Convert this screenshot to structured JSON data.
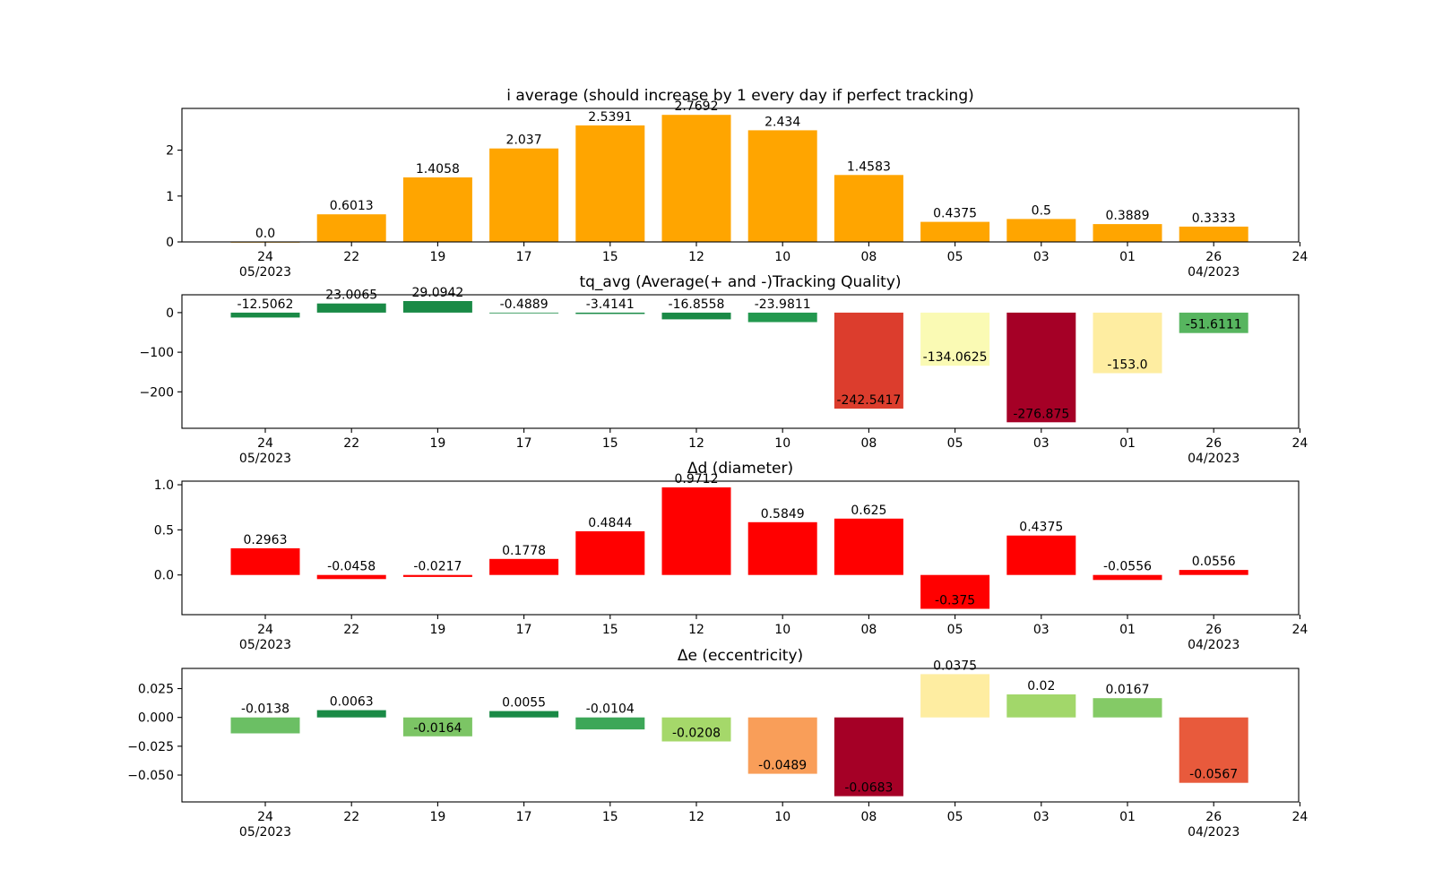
{
  "x_axis": {
    "ticks": [
      "24",
      "22",
      "19",
      "17",
      "15",
      "12",
      "10",
      "08",
      "05",
      "03",
      "01",
      "26",
      "24"
    ],
    "month_labels": [
      {
        "tick_index": 0,
        "text": "05/2023"
      },
      {
        "tick_index": 11,
        "text": "04/2023"
      }
    ]
  },
  "chart_data": [
    {
      "type": "bar",
      "title": "i average (should increase by 1 every day if perfect tracking)",
      "categories": [
        "24",
        "22",
        "19",
        "17",
        "15",
        "12",
        "10",
        "08",
        "05",
        "03",
        "01",
        "26"
      ],
      "values": [
        0.0,
        0.6013,
        1.4058,
        2.037,
        2.5391,
        2.7692,
        2.434,
        1.4583,
        0.4375,
        0.5,
        0.3889,
        0.3333
      ],
      "labels": [
        "0.0",
        "0.6013",
        "1.4058",
        "2.037",
        "2.5391",
        "2.7692",
        "2.434",
        "1.4583",
        "0.4375",
        "0.5",
        "0.3889",
        "0.3333"
      ],
      "colors": [
        "#ffa500",
        "#ffa500",
        "#ffa500",
        "#ffa500",
        "#ffa500",
        "#ffa500",
        "#ffa500",
        "#ffa500",
        "#ffa500",
        "#ffa500",
        "#ffa500",
        "#ffa500"
      ],
      "ylim": [
        0,
        2.91
      ],
      "yticks": [
        {
          "value": 0,
          "label": "0"
        },
        {
          "value": 1,
          "label": "1"
        },
        {
          "value": 2,
          "label": "2"
        }
      ],
      "label_inside_negative": false
    },
    {
      "type": "bar",
      "title": "tq_avg (Average(+ and -)Tracking Quality)",
      "categories": [
        "24",
        "22",
        "19",
        "17",
        "15",
        "12",
        "10",
        "08",
        "05",
        "03",
        "01",
        "26"
      ],
      "values": [
        -12.5062,
        23.0065,
        29.0942,
        -0.4889,
        -3.4141,
        -16.8558,
        -23.9811,
        -242.5417,
        -134.0625,
        -276.875,
        -153.0,
        -51.6111
      ],
      "labels": [
        "-12.5062",
        "23.0065",
        "29.0942",
        "-0.4889",
        "-3.4141",
        "-16.8558",
        "-23.9811",
        "-242.5417",
        "-134.0625",
        "-276.875",
        "-153.0",
        "-51.6111"
      ],
      "colors": [
        "#1a8a46",
        "#1a8a46",
        "#1a8a46",
        "#1a8a46",
        "#1a8a46",
        "#1a8a46",
        "#23984f",
        "#dc3d2d",
        "#fafab4",
        "#a50026",
        "#feeda1",
        "#57b55f"
      ],
      "ylim": [
        -292.0,
        45.0
      ],
      "yticks": [
        {
          "value": 0,
          "label": "0"
        },
        {
          "value": -100,
          "label": "−100"
        },
        {
          "value": -200,
          "label": "−200"
        }
      ],
      "label_inside_negative": true
    },
    {
      "type": "bar",
      "title": "Δd (diameter)",
      "categories": [
        "24",
        "22",
        "19",
        "17",
        "15",
        "12",
        "10",
        "08",
        "05",
        "03",
        "01",
        "26"
      ],
      "values": [
        0.2963,
        -0.0458,
        -0.0217,
        0.1778,
        0.4844,
        0.9712,
        0.5849,
        0.625,
        -0.375,
        0.4375,
        -0.0556,
        0.0556
      ],
      "labels": [
        "0.2963",
        "-0.0458",
        "-0.0217",
        "0.1778",
        "0.4844",
        "0.9712",
        "0.5849",
        "0.625",
        "-0.375",
        "0.4375",
        "-0.0556",
        "0.0556"
      ],
      "colors": [
        "#ff0000",
        "#ff0000",
        "#ff0000",
        "#ff0000",
        "#ff0000",
        "#ff0000",
        "#ff0000",
        "#ff0000",
        "#ff0000",
        "#ff0000",
        "#ff0000",
        "#ff0000"
      ],
      "ylim": [
        -0.44,
        1.04
      ],
      "yticks": [
        {
          "value": 1,
          "label": "1.0"
        },
        {
          "value": 0.5,
          "label": "0.5"
        },
        {
          "value": 0,
          "label": "0.0"
        }
      ],
      "label_inside_negative": true
    },
    {
      "type": "bar",
      "title": "Δe (eccentricity)",
      "categories": [
        "24",
        "22",
        "19",
        "17",
        "15",
        "12",
        "10",
        "08",
        "05",
        "03",
        "01",
        "26"
      ],
      "values": [
        -0.0138,
        0.0063,
        -0.0164,
        0.0055,
        -0.0104,
        -0.0208,
        -0.0489,
        -0.0683,
        0.0375,
        0.02,
        0.0167,
        -0.0567
      ],
      "labels": [
        "-0.0138",
        "0.0063",
        "-0.0164",
        "0.0055",
        "-0.0104",
        "-0.0208",
        "-0.0489",
        "-0.0683",
        "0.0375",
        "0.02",
        "0.0167",
        "-0.0567"
      ],
      "colors": [
        "#6bbf64",
        "#1a8a46",
        "#7cc565",
        "#1a8a46",
        "#3da758",
        "#a5d86a",
        "#f99e59",
        "#a50026",
        "#feeda1",
        "#a2d76a",
        "#84ca66",
        "#e85a3c"
      ],
      "ylim": [
        -0.0733,
        0.0425
      ],
      "yticks": [
        {
          "value": 0.025,
          "label": "0.025"
        },
        {
          "value": 0,
          "label": "0.000"
        },
        {
          "value": -0.025,
          "label": "−0.025"
        },
        {
          "value": -0.05,
          "label": "−0.050"
        }
      ],
      "label_inside_negative": true
    }
  ]
}
